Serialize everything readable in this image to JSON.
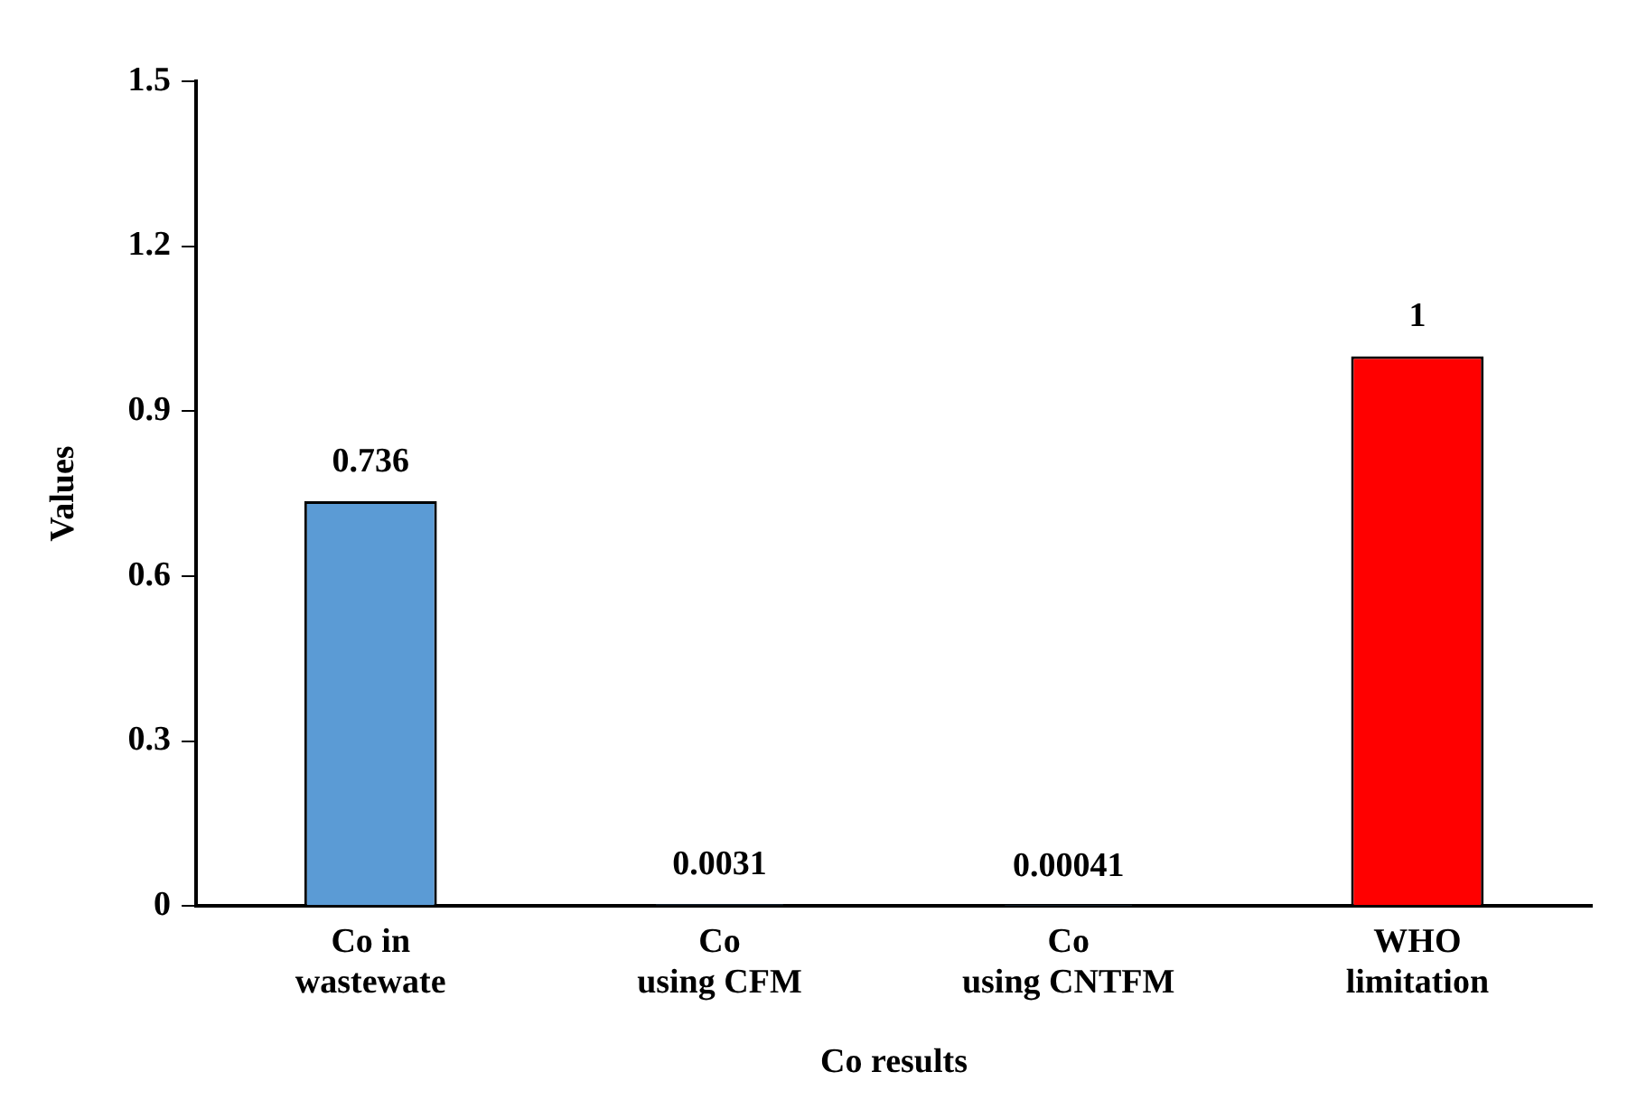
{
  "chart_data": {
    "type": "bar",
    "xlabel": "Co results",
    "ylabel": "Values",
    "categories": [
      "Co in\nwastewate",
      "Co\nusing CFM",
      "Co\nusing CNTFM",
      "WHO\nlimitation"
    ],
    "values": [
      0.736,
      0.0031,
      0.00041,
      1
    ],
    "colors": [
      "#5b9bd5",
      "#5b9bd5",
      "#5b9bd5",
      "#ff0000"
    ],
    "ylim": [
      0,
      1.5
    ],
    "yticks": [
      0,
      0.3,
      0.6,
      0.9,
      1.2,
      1.5
    ],
    "grid": false,
    "legend": false,
    "data_labels": true
  }
}
